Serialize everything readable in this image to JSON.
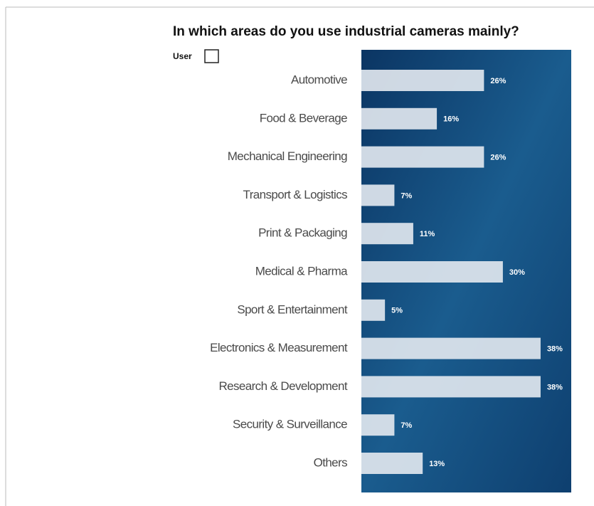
{
  "chart_data": {
    "type": "bar",
    "orientation": "horizontal",
    "title": "In which areas do you use industrial cameras mainly?",
    "categories": [
      "Automotive",
      "Food & Beverage",
      "Mechanical Engineering",
      "Transport & Logistics",
      "Print & Packaging",
      "Medical & Pharma",
      "Sport & Entertainment",
      "Electronics & Measurement",
      "Research & Development",
      "Security & Surveillance",
      "Others"
    ],
    "series": [
      {
        "name": "User",
        "color": "#dfe6ee",
        "values": [
          26,
          16,
          26,
          7,
          11,
          30,
          5,
          38,
          38,
          7,
          13
        ],
        "value_labels": [
          "26%",
          "16%",
          "26%",
          "7%",
          "11%",
          "30%",
          "5%",
          "38%",
          "38%",
          "7%",
          "13%"
        ]
      }
    ]
  }
}
